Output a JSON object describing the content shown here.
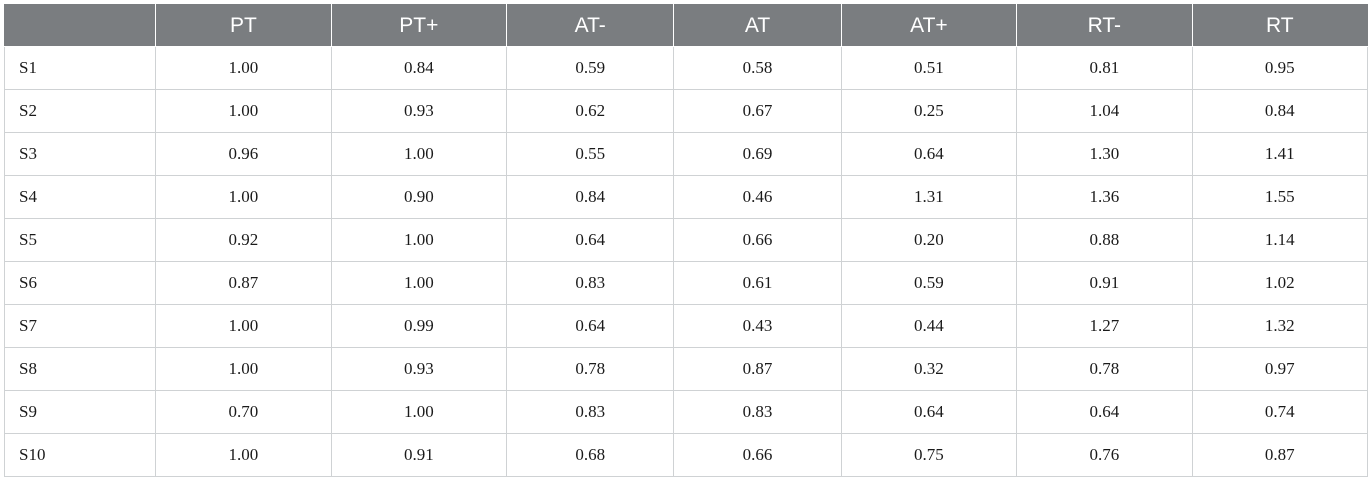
{
  "table": {
    "columns": [
      "",
      "PT",
      "PT+",
      "AT-",
      "AT",
      "AT+",
      "RT-",
      "RT"
    ],
    "rows": [
      {
        "label": "S1",
        "values": [
          "1.00",
          "0.84",
          "0.59",
          "0.58",
          "0.51",
          "0.81",
          "0.95"
        ]
      },
      {
        "label": "S2",
        "values": [
          "1.00",
          "0.93",
          "0.62",
          "0.67",
          "0.25",
          "1.04",
          "0.84"
        ]
      },
      {
        "label": "S3",
        "values": [
          "0.96",
          "1.00",
          "0.55",
          "0.69",
          "0.64",
          "1.30",
          "1.41"
        ]
      },
      {
        "label": "S4",
        "values": [
          "1.00",
          "0.90",
          "0.84",
          "0.46",
          "1.31",
          "1.36",
          "1.55"
        ]
      },
      {
        "label": "S5",
        "values": [
          "0.92",
          "1.00",
          "0.64",
          "0.66",
          "0.20",
          "0.88",
          "1.14"
        ]
      },
      {
        "label": "S6",
        "values": [
          "0.87",
          "1.00",
          "0.83",
          "0.61",
          "0.59",
          "0.91",
          "1.02"
        ]
      },
      {
        "label": "S7",
        "values": [
          "1.00",
          "0.99",
          "0.64",
          "0.43",
          "0.44",
          "1.27",
          "1.32"
        ]
      },
      {
        "label": "S8",
        "values": [
          "1.00",
          "0.93",
          "0.78",
          "0.87",
          "0.32",
          "0.78",
          "0.97"
        ]
      },
      {
        "label": "S9",
        "values": [
          "0.70",
          "1.00",
          "0.83",
          "0.83",
          "0.64",
          "0.64",
          "0.74"
        ]
      },
      {
        "label": "S10",
        "values": [
          "1.00",
          "0.91",
          "0.68",
          "0.66",
          "0.75",
          "0.76",
          "0.87"
        ]
      }
    ]
  },
  "colors": {
    "header_background": "#7a7d80",
    "header_text": "#ffffff",
    "grid_line": "#cfd2d4"
  }
}
